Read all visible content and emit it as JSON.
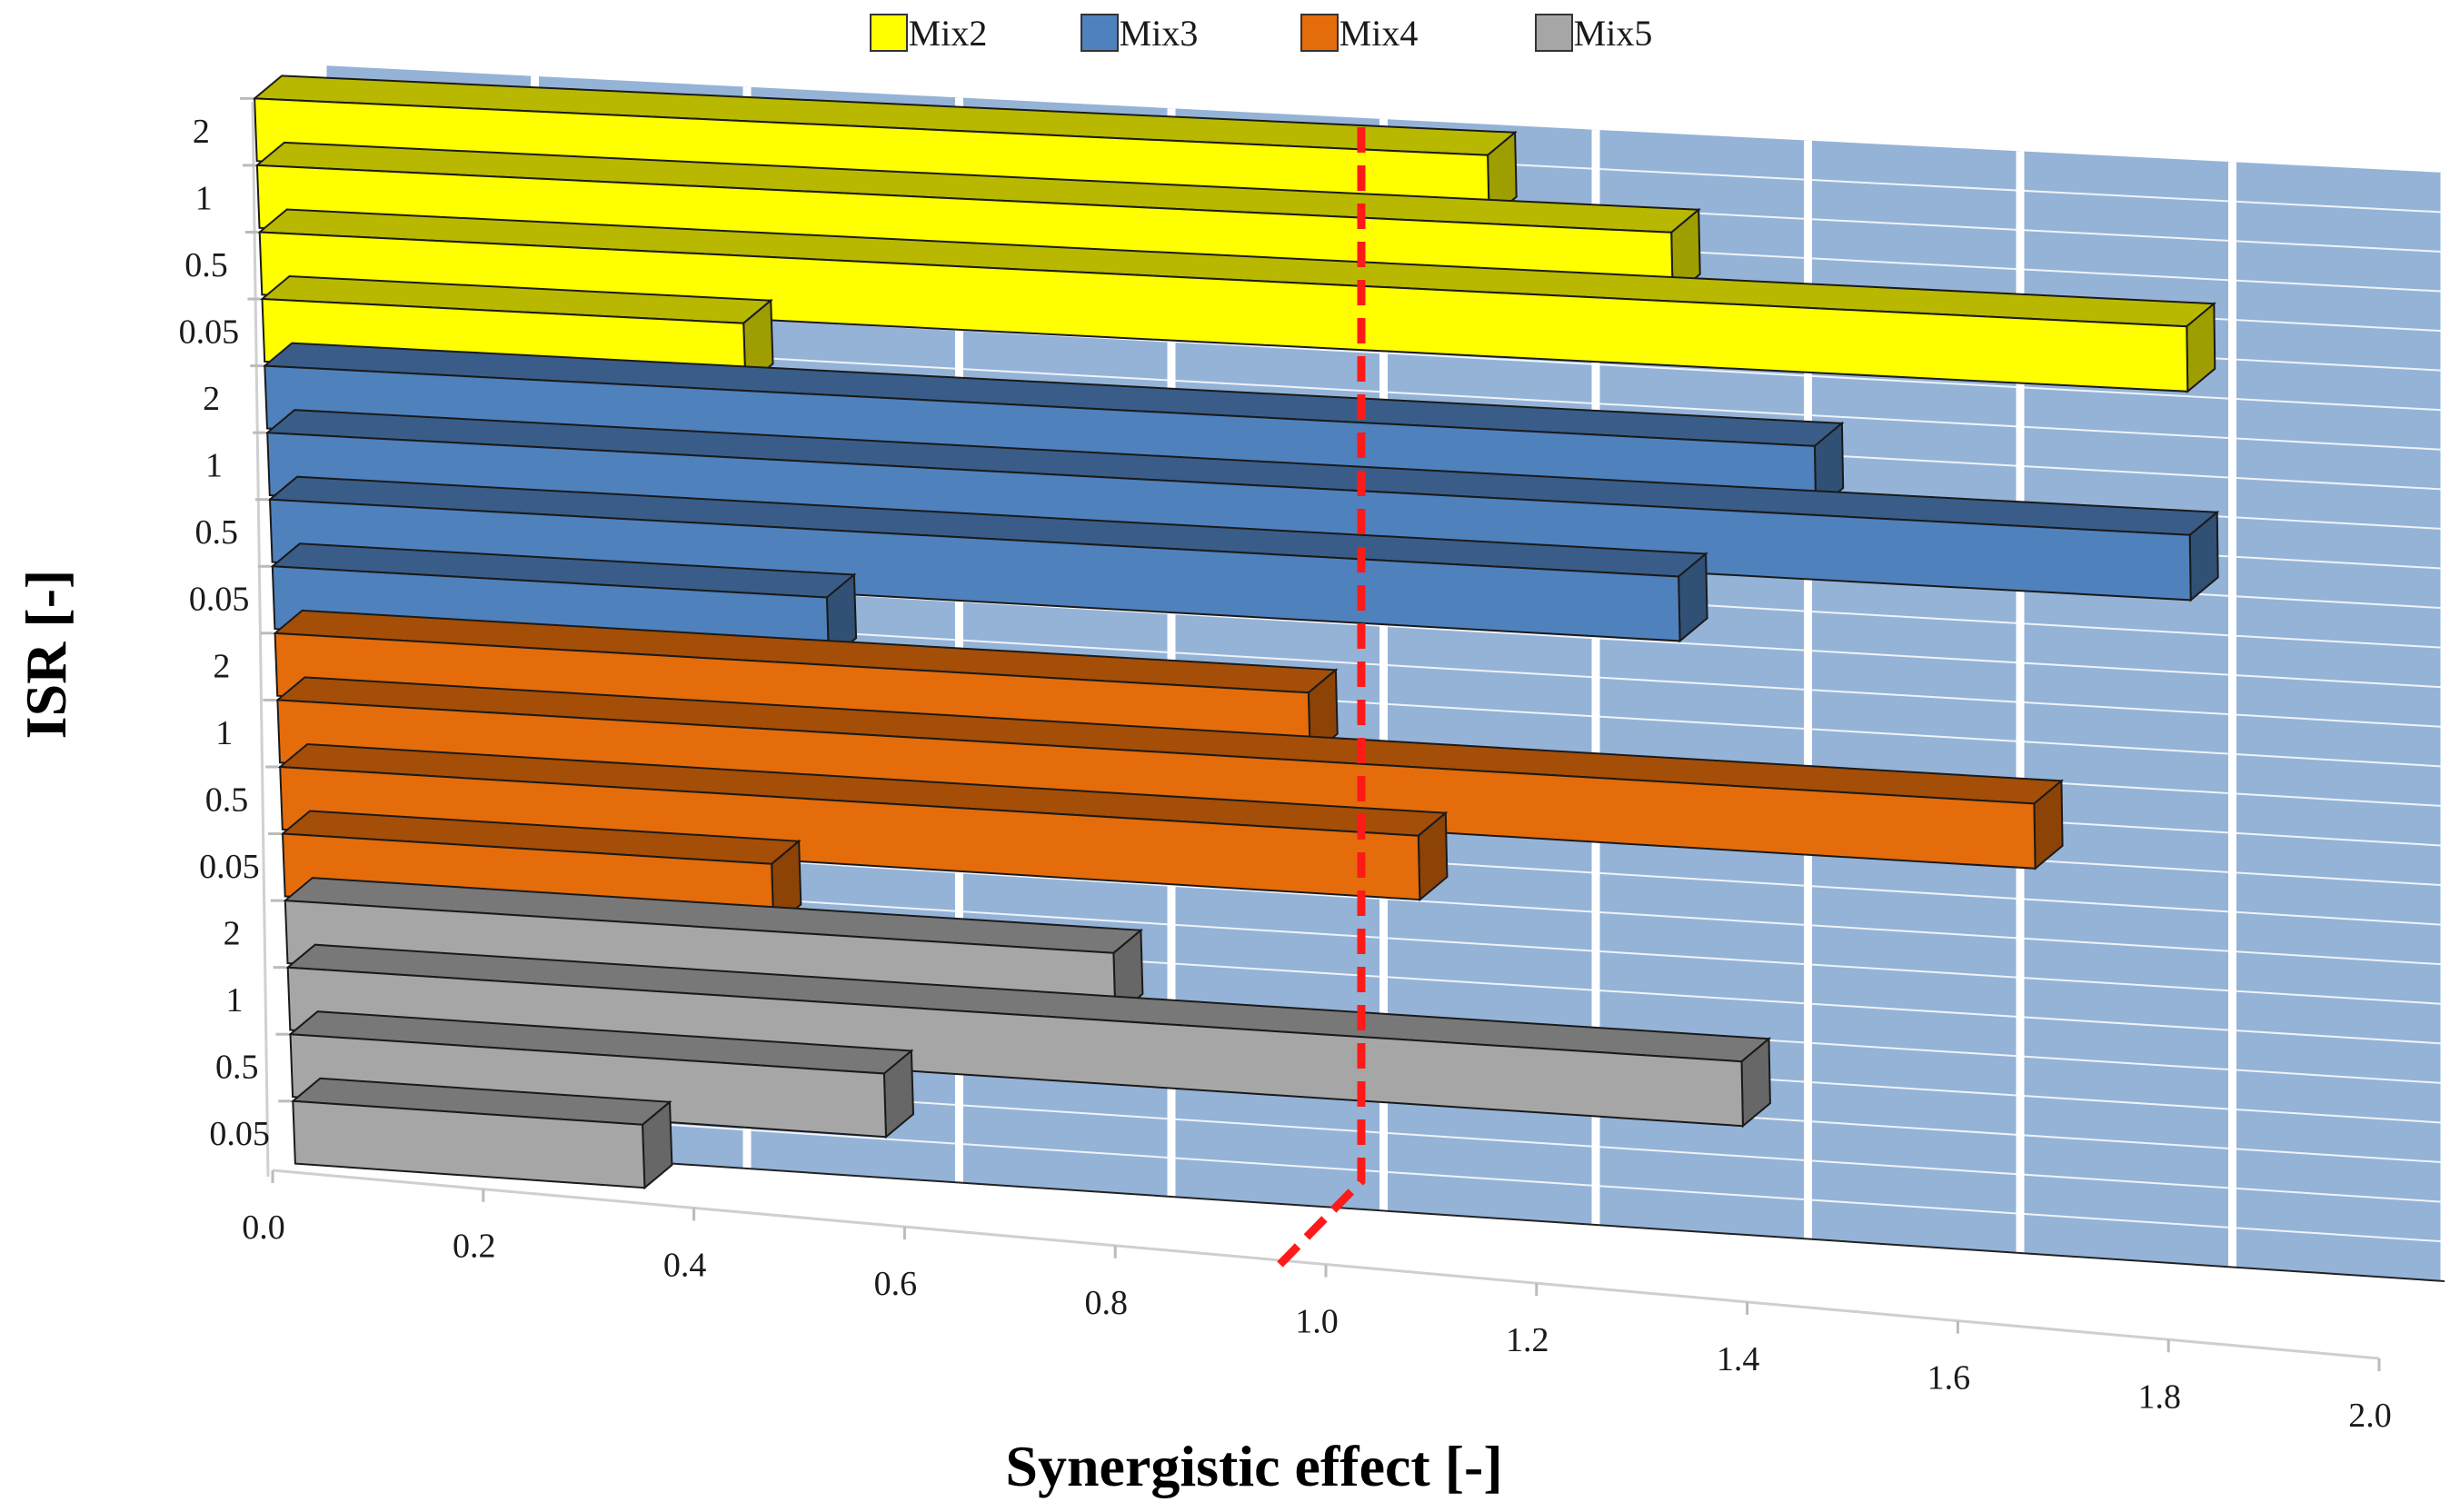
{
  "chart_data": {
    "type": "bar",
    "orientation": "horizontal",
    "render": "3d",
    "xlabel": "Synergistic effect [-]",
    "ylabel": "ISR [-]",
    "xlim": [
      0.0,
      2.0
    ],
    "x_ticks": [
      "0.0",
      "0.2",
      "0.4",
      "0.6",
      "0.8",
      "1.0",
      "1.2",
      "1.4",
      "1.6",
      "1.8",
      "2.0"
    ],
    "categories": [
      "2",
      "1",
      "0.5",
      "0.05"
    ],
    "legend_position": "top",
    "reference_line": {
      "x": 1.0,
      "color": "#ff1a1a",
      "style": "dashed"
    },
    "background_color": "#95b3d7",
    "series": [
      {
        "name": "Mix2",
        "color": "#ffff00",
        "values": [
          1.15,
          1.32,
          1.8,
          0.45
        ]
      },
      {
        "name": "Mix3",
        "color": "#4f81bd",
        "values": [
          1.45,
          1.8,
          1.32,
          0.52
        ]
      },
      {
        "name": "Mix4",
        "color": "#e46c0a",
        "values": [
          0.97,
          1.65,
          1.07,
          0.46
        ]
      },
      {
        "name": "Mix5",
        "color": "#a6a6a6",
        "values": [
          0.78,
          1.37,
          0.56,
          0.33
        ]
      }
    ]
  }
}
